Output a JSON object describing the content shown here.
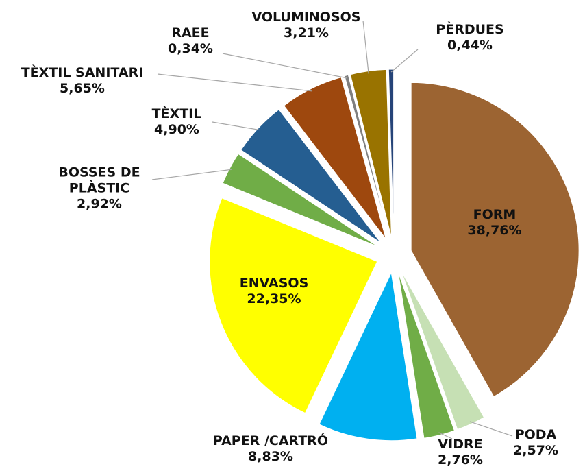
{
  "chart_data": {
    "type": "pie",
    "categories": [
      "FORM",
      "PODA",
      "VIDRE",
      "PAPER /CARTRÓ",
      "ENVASOS",
      "BOSSES DE PLÀSTIC",
      "TÈXTIL",
      "TÈXTIL SANITARI",
      "RAEE",
      "VOLUMINOSOS",
      "PÈRDUES"
    ],
    "values": [
      38.76,
      2.57,
      2.76,
      8.83,
      22.35,
      2.92,
      4.9,
      5.65,
      0.34,
      3.21,
      0.44
    ],
    "value_labels": [
      "38,76%",
      "2,57%",
      "2,76%",
      "8,83%",
      "22,35%",
      "2,92%",
      "4,90%",
      "5,65%",
      "0,34%",
      "3,21%",
      "0,44%"
    ],
    "colors": [
      "#9c6432",
      "#c6e0b4",
      "#70ad47",
      "#00b0f0",
      "#ffff00",
      "#70ad47",
      "#255e91",
      "#9e480e",
      "#7f7f7f",
      "#997300",
      "#264478"
    ]
  }
}
